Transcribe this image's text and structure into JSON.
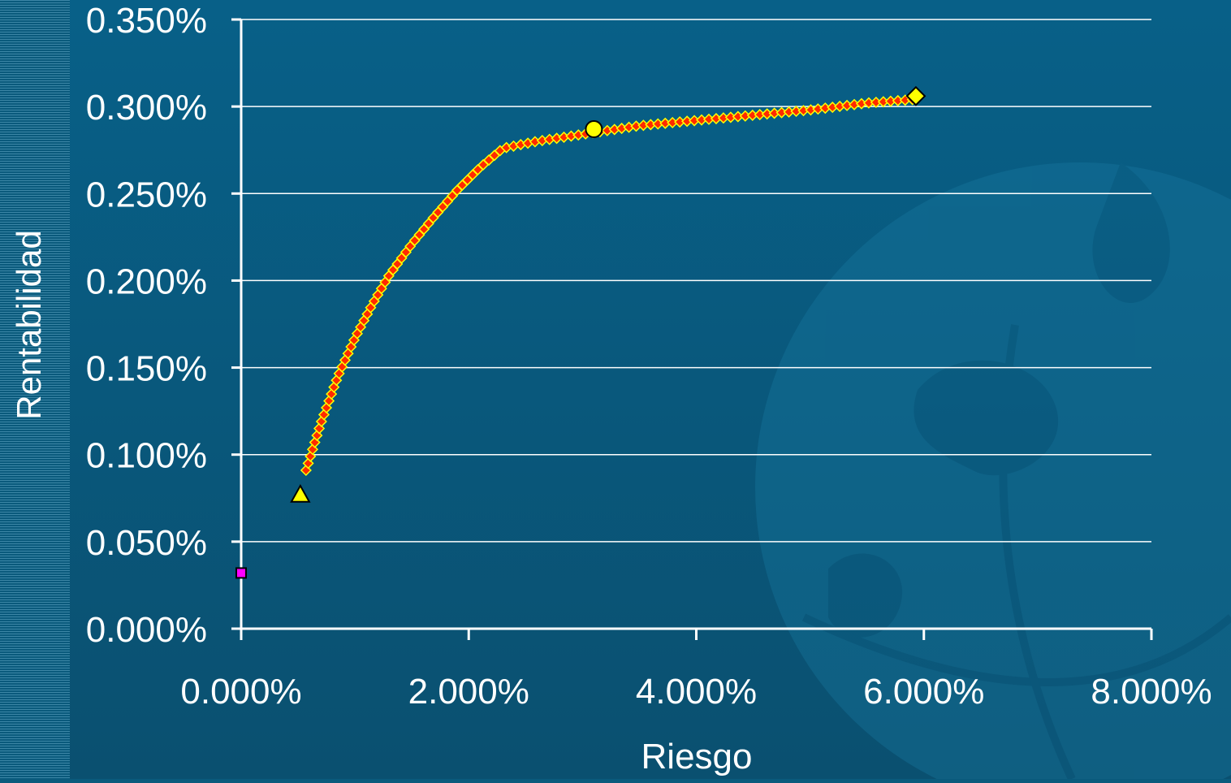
{
  "chart_data": {
    "type": "scatter",
    "title": "",
    "xlabel": "Riesgo",
    "ylabel": "Rentabilidad",
    "xlim": [
      0,
      8
    ],
    "ylim": [
      0,
      0.35
    ],
    "x_ticks": [
      "0.000%",
      "2.000%",
      "4.000%",
      "6.000%",
      "8.000%"
    ],
    "y_ticks": [
      "0.000%",
      "0.050%",
      "0.100%",
      "0.150%",
      "0.200%",
      "0.250%",
      "0.300%",
      "0.350%"
    ],
    "grid": true,
    "legend": "none",
    "series": [
      {
        "marker": "diamond",
        "color": "#ff2a00",
        "edge_color": "#ffff00",
        "curve_knots": [
          [
            0.57,
            0.091
          ],
          [
            0.7,
            0.118
          ],
          [
            0.85,
            0.145
          ],
          [
            1.0,
            0.167
          ],
          [
            1.15,
            0.186
          ],
          [
            1.3,
            0.203
          ],
          [
            1.5,
            0.221
          ],
          [
            1.7,
            0.237
          ],
          [
            1.9,
            0.252
          ],
          [
            2.1,
            0.265
          ],
          [
            2.3,
            0.276
          ],
          [
            2.6,
            0.28
          ],
          [
            3.1,
            0.285
          ],
          [
            3.5,
            0.289
          ],
          [
            4.0,
            0.292
          ],
          [
            4.5,
            0.295
          ],
          [
            5.0,
            0.298
          ],
          [
            5.5,
            0.302
          ],
          [
            5.9,
            0.304
          ]
        ],
        "point_count": 110
      },
      {
        "marker": "square",
        "color": "#ff00ff",
        "points": [
          [
            0.0,
            0.032
          ]
        ]
      },
      {
        "marker": "triangle",
        "color": "#ffff00",
        "points": [
          [
            0.52,
            0.077
          ]
        ]
      },
      {
        "marker": "circle",
        "color": "#ffff00",
        "points": [
          [
            3.1,
            0.287
          ]
        ]
      },
      {
        "marker": "diamond",
        "color": "#ffff00",
        "points": [
          [
            5.93,
            0.306
          ]
        ]
      }
    ],
    "colors": {
      "background": "#0a5a7c",
      "axis": "#ffffff",
      "grid": "#ffffff",
      "text": "#ffffff"
    }
  }
}
